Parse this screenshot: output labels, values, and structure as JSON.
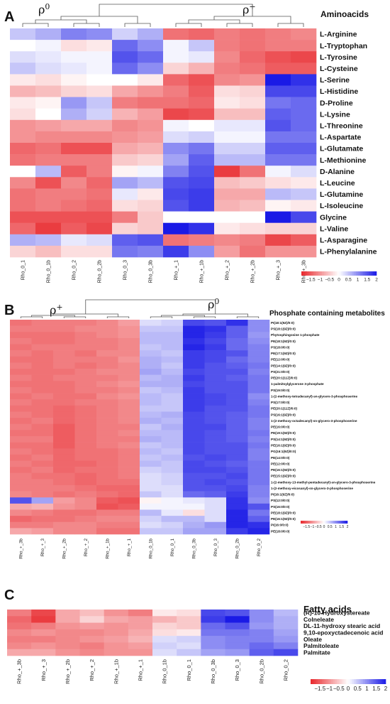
{
  "colorscale": {
    "min": -2,
    "max": 2,
    "neg_color": "#e8262b",
    "mid_color": "#ffffff",
    "pos_color": "#1a1ae6",
    "ticks": [
      "-1.5",
      "-1",
      "-0.5",
      "0",
      "0.5",
      "1",
      "1.5",
      "2"
    ]
  },
  "chart_data": [
    {
      "type": "heatmap",
      "panel": "A",
      "title": "Aminoacids",
      "group_labels": [
        "ρ0",
        "ρ+"
      ],
      "columns": [
        "Rho_0_1",
        "Rho_0_1b",
        "Rho_0_2",
        "Rho_0_2b",
        "Rho_0_3",
        "Rho_0_3b",
        "Rho_+_1",
        "Rho_+_1b",
        "Rho_+_2",
        "Rho_+_2b",
        "Rho_+_3",
        "Rho_+_3b"
      ],
      "rows": [
        "L-Arginine",
        "L-Tryptophan",
        "L-Tyrosine",
        "L-Cysteine",
        "L-Serine",
        "L-Histidine",
        "D-Proline",
        "L-Lysine",
        "L-Threonine",
        "L-Aspartate",
        "L-Glutamate",
        "L-Methionine",
        "D-Alanine",
        "L-Leucine",
        "L-Glutamine",
        "L-Isoleucine",
        "Glycine",
        "L-Valine",
        "L-Asparagine",
        "L-Phenylalanine"
      ],
      "values": [
        [
          0.5,
          0.7,
          1.1,
          1.0,
          0.4,
          0.7,
          -1.3,
          -1.4,
          -1.2,
          -1.3,
          -1.2,
          -1.1
        ],
        [
          0.0,
          0.1,
          -0.3,
          -0.2,
          1.3,
          1.0,
          0.1,
          0.5,
          -1.2,
          -1.3,
          -1.2,
          -1.2
        ],
        [
          0.3,
          0.2,
          0.1,
          0.1,
          1.5,
          1.3,
          0.1,
          0.2,
          -1.1,
          -1.4,
          -1.6,
          -1.7
        ],
        [
          0.5,
          0.3,
          0.2,
          0.1,
          1.3,
          1.0,
          -0.4,
          -0.7,
          -1.2,
          -1.3,
          -1.5,
          -1.5
        ],
        [
          -0.2,
          -0.3,
          -0.1,
          0.0,
          0.0,
          -0.2,
          -1.4,
          -1.6,
          -1.1,
          -1.0,
          2.0,
          1.8
        ],
        [
          -0.7,
          -0.6,
          -0.4,
          -0.3,
          -0.8,
          -1.0,
          -1.2,
          -1.5,
          -0.3,
          -0.4,
          1.6,
          1.6
        ],
        [
          -0.2,
          -0.1,
          0.9,
          0.5,
          -1.2,
          -1.3,
          -1.3,
          -1.4,
          -0.2,
          -0.3,
          1.2,
          1.3
        ],
        [
          -0.3,
          0.0,
          0.7,
          0.4,
          -0.7,
          -0.9,
          -1.7,
          -1.6,
          -0.6,
          -0.6,
          1.4,
          1.3
        ],
        [
          -1.0,
          -0.9,
          -0.8,
          -0.8,
          -1.1,
          -1.0,
          0.1,
          0.0,
          0.2,
          0.2,
          1.5,
          1.3
        ],
        [
          -1.0,
          -1.1,
          -1.1,
          -1.1,
          -1.0,
          -0.9,
          0.3,
          0.4,
          0.1,
          0.1,
          1.2,
          1.2
        ],
        [
          -1.4,
          -1.3,
          -1.6,
          -1.6,
          -0.8,
          -0.7,
          1.0,
          1.2,
          0.4,
          0.4,
          1.4,
          1.4
        ],
        [
          -1.3,
          -1.2,
          -1.2,
          -1.2,
          -0.5,
          -0.4,
          0.8,
          1.4,
          0.6,
          0.6,
          1.2,
          1.2
        ],
        [
          0.0,
          0.6,
          -1.5,
          -1.2,
          -0.1,
          0.1,
          1.1,
          1.5,
          -1.8,
          -1.3,
          0.1,
          0.3
        ],
        [
          -1.1,
          -1.6,
          -1.1,
          -1.4,
          0.8,
          0.6,
          1.5,
          1.6,
          -0.6,
          -0.5,
          -0.3,
          -0.2
        ],
        [
          -1.3,
          -1.2,
          -1.2,
          -1.3,
          0.2,
          -0.2,
          1.6,
          1.7,
          -0.8,
          -0.8,
          0.6,
          0.5
        ],
        [
          -1.3,
          -1.2,
          -1.3,
          -1.4,
          -0.3,
          -0.4,
          1.5,
          1.7,
          -0.7,
          -0.6,
          -0.1,
          -0.2
        ],
        [
          -1.6,
          -1.6,
          -1.6,
          -1.6,
          -1.2,
          -0.5,
          0.0,
          0.0,
          0.0,
          0.0,
          2.0,
          1.6
        ],
        [
          -1.4,
          -1.8,
          -1.5,
          -1.7,
          -0.4,
          -0.5,
          2.0,
          1.8,
          -0.2,
          -0.3,
          -0.4,
          -0.4
        ],
        [
          0.7,
          0.6,
          0.2,
          0.3,
          1.4,
          1.5,
          -1.3,
          -1.2,
          -1.1,
          -1.2,
          -1.7,
          -1.5
        ],
        [
          -0.4,
          -0.6,
          -0.3,
          -0.3,
          1.2,
          1.1,
          1.7,
          1.0,
          -0.9,
          -1.3,
          -1.0,
          -1.0
        ]
      ],
      "column_dendrogram": true
    },
    {
      "type": "heatmap",
      "panel": "B",
      "title": "Phosphate containing metabolites",
      "group_labels": [
        "ρ+",
        "ρ0"
      ],
      "columns": [
        "Rho_+_3b",
        "Rho_+_3",
        "Rho_+_2b",
        "Rho_+_2",
        "Rho_+_1b",
        "Rho_+_1",
        "Rho_0_1b",
        "Rho_0_1",
        "Rho_0_3b",
        "Rho_0_3",
        "Rho_0_2b",
        "Rho_0_2"
      ],
      "rows": [
        "PI(18:1(9Z)/0:0)",
        "PS(18:1(9Z)/0:0)",
        "Phytosphingosine 1-phosphate",
        "PE(18:1(9Z)/0:0)",
        "PS(18:0/0:0)",
        "PE(17:1(9Z)/0:0)",
        "PE(12:0/0:0)",
        "PE(14:1(9Z)/0:0)",
        "PS(21:0/0:0)",
        "PE(20:1(11Z)/0:0)",
        "1-palmitoylglycerone 3-phosphate",
        "PS(19:0/0:0)",
        "1-(2-methoxy-tetradecanyl)-sn-glycero-3-phosphoserine",
        "PS(17:0/0:0)",
        "PE(20:1(11Z)/0:0)",
        "PS(16:1(9Z)/0:0)",
        "1-(2-methoxy-octadecanyl)-sn-glycero-3-phosphoserine",
        "PE(16:0/0:0)",
        "PE(19:1(9Z)/0:0)",
        "PS(14:1(9Z)/0:0)",
        "PE(16:1(9Z)/0:0)",
        "PG(16:1(9Z)/0:0)",
        "PE(14:0/0:0)",
        "PE(12:0/0:0)",
        "PE(16:1(9Z)/0:0)",
        "PE(15:1(9Z)/0:0)",
        "1-(2-methoxy-13-methyl-pentadecanyl)-sn-glycero-3-phosphoserine",
        "1-(2-methoxy-eicosanyl)-sn-glycero-3-phosphoserine",
        "PI(16:1(9Z)/0:0)",
        "PS(12:0/0:0)",
        "PS(16:0/0:0)",
        "PE(18:1(9Z)/0:0)",
        "PE(16:1(9Z)/0:0)",
        "PI(16:0/0:0)",
        "PE(18:0/0:0)"
      ],
      "values": [
        [
          -1.3,
          -1.2,
          -1.2,
          -1.2,
          -1.1,
          -0.9,
          0.3,
          0.4,
          1.6,
          1.5,
          1.8,
          1.0
        ],
        [
          -1.2,
          -1.2,
          -1.2,
          -1.1,
          -1.1,
          -1.0,
          0.5,
          0.5,
          1.9,
          1.8,
          1.4,
          1.0
        ],
        [
          -1.3,
          -1.3,
          -1.3,
          -1.2,
          -1.1,
          -1.0,
          0.6,
          0.6,
          1.9,
          1.7,
          1.4,
          0.9
        ],
        [
          -1.2,
          -1.3,
          -1.3,
          -1.2,
          -1.2,
          -1.1,
          0.6,
          0.6,
          1.8,
          1.6,
          1.3,
          1.0
        ],
        [
          -1.3,
          -1.2,
          -1.2,
          -1.2,
          -1.2,
          -1.1,
          0.5,
          0.6,
          1.9,
          1.7,
          1.3,
          1.1
        ],
        [
          -1.2,
          -1.3,
          -1.2,
          -1.3,
          -1.1,
          -1.1,
          0.6,
          0.5,
          1.7,
          1.6,
          1.5,
          1.1
        ],
        [
          -1.3,
          -1.3,
          -1.2,
          -1.2,
          -1.2,
          -1.0,
          0.7,
          0.6,
          1.7,
          1.6,
          1.3,
          1.1
        ],
        [
          -1.2,
          -1.3,
          -1.2,
          -1.3,
          -1.2,
          -1.1,
          0.7,
          0.5,
          1.7,
          1.5,
          1.4,
          1.2
        ],
        [
          -1.3,
          -1.3,
          -1.3,
          -1.2,
          -1.1,
          -1.1,
          0.8,
          0.6,
          1.6,
          1.5,
          1.5,
          1.1
        ],
        [
          -1.2,
          -1.3,
          -1.2,
          -1.2,
          -1.2,
          -1.1,
          0.6,
          0.7,
          1.7,
          1.5,
          1.4,
          1.2
        ],
        [
          -1.3,
          -1.3,
          -1.3,
          -1.2,
          -1.1,
          -1.0,
          0.7,
          0.7,
          1.6,
          1.5,
          1.5,
          1.2
        ],
        [
          -1.2,
          -1.3,
          -1.3,
          -1.2,
          -1.2,
          -1.1,
          0.5,
          0.6,
          1.7,
          1.5,
          1.5,
          1.2
        ],
        [
          -1.3,
          -1.2,
          -1.3,
          -1.3,
          -1.1,
          -1.0,
          0.6,
          0.5,
          1.7,
          1.6,
          1.5,
          1.0
        ],
        [
          -1.2,
          -1.3,
          -1.3,
          -1.2,
          -1.2,
          -1.1,
          0.6,
          0.5,
          1.7,
          1.6,
          1.5,
          1.1
        ],
        [
          -1.3,
          -1.3,
          -1.4,
          -1.3,
          -1.2,
          -1.1,
          0.5,
          0.5,
          1.7,
          1.5,
          1.5,
          1.2
        ],
        [
          -1.2,
          -1.3,
          -1.4,
          -1.3,
          -1.2,
          -1.1,
          0.6,
          0.7,
          1.6,
          1.5,
          1.4,
          1.2
        ],
        [
          -1.3,
          -1.2,
          -1.4,
          -1.3,
          -1.2,
          -1.1,
          0.7,
          0.6,
          1.6,
          1.5,
          1.4,
          1.1
        ],
        [
          -1.2,
          -1.3,
          -1.5,
          -1.3,
          -1.2,
          -1.2,
          0.5,
          0.7,
          1.6,
          1.6,
          1.4,
          1.1
        ],
        [
          -1.3,
          -1.3,
          -1.5,
          -1.3,
          -1.2,
          -1.1,
          0.6,
          0.6,
          1.6,
          1.5,
          1.4,
          1.2
        ],
        [
          -1.2,
          -1.2,
          -1.5,
          -1.3,
          -1.2,
          -1.2,
          0.7,
          0.6,
          1.6,
          1.5,
          1.4,
          1.1
        ],
        [
          -1.3,
          -1.3,
          -1.5,
          -1.3,
          -1.2,
          -1.1,
          0.5,
          0.6,
          1.6,
          1.5,
          1.5,
          1.2
        ],
        [
          -1.2,
          -1.3,
          -1.4,
          -1.3,
          -1.3,
          -1.2,
          0.6,
          0.5,
          1.6,
          1.5,
          1.5,
          1.1
        ],
        [
          -1.3,
          -1.2,
          -1.4,
          -1.3,
          -1.3,
          -1.2,
          0.5,
          0.6,
          1.5,
          1.6,
          1.5,
          1.1
        ],
        [
          -1.2,
          -1.3,
          -1.4,
          -1.4,
          -1.3,
          -1.2,
          0.6,
          0.5,
          1.6,
          1.5,
          1.4,
          1.2
        ],
        [
          -1.3,
          -1.2,
          -1.4,
          -1.3,
          -1.3,
          -1.2,
          0.4,
          0.5,
          1.6,
          1.6,
          1.5,
          1.2
        ],
        [
          -1.2,
          -1.3,
          -1.3,
          -1.4,
          -1.3,
          -1.2,
          0.3,
          0.4,
          1.5,
          1.5,
          1.6,
          1.2
        ],
        [
          -1.2,
          -1.2,
          -1.3,
          -1.4,
          -1.3,
          -1.3,
          0.3,
          0.4,
          1.5,
          1.6,
          1.5,
          1.2
        ],
        [
          -1.2,
          -1.2,
          -1.2,
          -1.3,
          -1.4,
          -1.4,
          0.3,
          0.3,
          1.5,
          1.5,
          1.6,
          1.1
        ],
        [
          -1.1,
          -1.2,
          -1.3,
          -1.2,
          -1.3,
          -1.4,
          0.5,
          0.3,
          1.3,
          1.4,
          1.7,
          1.1
        ],
        [
          1.5,
          0.8,
          -0.9,
          -1.1,
          -1.5,
          -1.6,
          -0.1,
          0.1,
          0.2,
          0.3,
          1.8,
          1.0
        ],
        [
          -0.8,
          -0.7,
          -1.0,
          -1.1,
          -1.6,
          -1.5,
          0.1,
          0.1,
          0.1,
          0.3,
          1.8,
          1.5
        ],
        [
          -1.1,
          -1.2,
          -1.3,
          -1.3,
          -1.2,
          -1.2,
          0.6,
          0.2,
          -0.3,
          0.3,
          1.9,
          1.2
        ],
        [
          -1.4,
          -1.3,
          -1.3,
          -1.2,
          -1.1,
          -1.1,
          0.4,
          0.6,
          0.6,
          0.3,
          1.9,
          1.4
        ],
        [
          -1.2,
          -1.2,
          -1.1,
          -1.1,
          -1.2,
          -1.2,
          0.3,
          0.4,
          0.7,
          0.9,
          1.9,
          1.8
        ],
        [
          -0.8,
          -0.9,
          -1.1,
          -1.1,
          -1.3,
          -1.3,
          0.5,
          0.5,
          0.8,
          0.8,
          1.7,
          1.9
        ]
      ],
      "column_dendrogram": true
    },
    {
      "type": "heatmap",
      "panel": "C",
      "title": "Fatty acids",
      "columns": [
        "Rho_+_3b",
        "Rho_+_3",
        "Rho_+_2b",
        "Rho_+_2",
        "Rho_+_1b",
        "Rho_+_1",
        "Rho_0_1b",
        "Rho_0_1",
        "Rho_0_3b",
        "Rho_0_3",
        "Rho_0_2b",
        "Rho_0_2"
      ],
      "rows": [
        "(R)-10-Hydroxystereate",
        "Colneleate",
        "DL-11-hydroxy stearic acid",
        "9,10-epoxyctadecenoic acid",
        "Oleate",
        "Palmitoleate",
        "Palmitate"
      ],
      "values": [
        [
          -1.2,
          -1.7,
          -0.8,
          -0.6,
          -1.0,
          -1.2,
          -0.2,
          -0.3,
          1.6,
          1.5,
          1.0,
          0.6
        ],
        [
          -1.4,
          -1.8,
          -0.8,
          -0.4,
          -0.8,
          -0.9,
          -0.7,
          -0.5,
          1.7,
          2.0,
          1.0,
          0.7
        ],
        [
          -1.3,
          -1.2,
          -1.0,
          -0.9,
          -1.0,
          -0.9,
          -0.4,
          -0.5,
          1.3,
          1.5,
          0.9,
          0.7
        ],
        [
          -1.1,
          -1.0,
          -1.1,
          -1.1,
          -1.0,
          -0.8,
          -0.3,
          -0.2,
          1.2,
          1.2,
          1.1,
          0.8
        ],
        [
          -1.2,
          -1.2,
          -1.1,
          -1.0,
          -0.9,
          -0.7,
          0.3,
          0.4,
          1.0,
          1.1,
          1.1,
          0.9
        ],
        [
          -1.1,
          -1.0,
          -1.1,
          -1.2,
          -1.0,
          -0.9,
          0.4,
          0.3,
          1.0,
          1.1,
          1.3,
          1.1
        ],
        [
          -0.8,
          -0.8,
          -1.0,
          -1.1,
          -1.0,
          -1.0,
          0.3,
          0.5,
          0.8,
          0.9,
          1.4,
          1.6
        ]
      ]
    }
  ]
}
